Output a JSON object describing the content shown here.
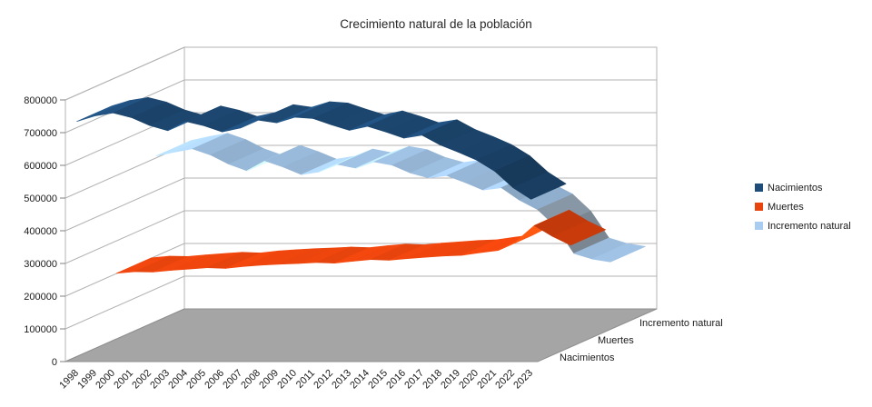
{
  "chart_data": {
    "type": "line",
    "variant": "3d-ribbon",
    "title": "Crecimiento natural de la población",
    "grid": "horizontal",
    "legend_position": "right",
    "wall_line_color": "#B3B3B3",
    "floor_color": "#A5A5A5",
    "ylim": [
      0,
      800000
    ],
    "ytick_step": 100000,
    "ytick_labels": [
      "0",
      "100000",
      "200000",
      "300000",
      "400000",
      "500000",
      "600000",
      "700000",
      "800000"
    ],
    "categories": [
      "1998",
      "1999",
      "2000",
      "2001",
      "2002",
      "2003",
      "2004",
      "2005",
      "2006",
      "2007",
      "2008",
      "2009",
      "2010",
      "2011",
      "2012",
      "2013",
      "2014",
      "2015",
      "2016",
      "2017",
      "2018",
      "2019",
      "2020",
      "2021",
      "2022",
      "2023"
    ],
    "series": [
      {
        "name": "Nacimientos",
        "color": "#1F4C78",
        "values": [
          731000,
          748000,
          757000,
          743000,
          719000,
          703000,
          731000,
          718000,
          699000,
          711000,
          735000,
          727000,
          744000,
          740000,
          721000,
          704000,
          716000,
          699000,
          680000,
          689000,
          659000,
          637000,
          613000,
          579000,
          529000,
          493000
        ]
      },
      {
        "name": "Muertes",
        "color": "#E8440D",
        "values": [
          213000,
          218000,
          217000,
          222000,
          226000,
          230000,
          228000,
          234000,
          238000,
          241000,
          243000,
          246000,
          244000,
          250000,
          255000,
          253000,
          258000,
          262000,
          266000,
          268000,
          276000,
          283000,
          311000,
          359000,
          326000,
          299000
        ]
      },
      {
        "name": "Incremento natural",
        "color": "#A9CDF1",
        "values": [
          518000,
          530000,
          540000,
          521000,
          493000,
          473000,
          503000,
          484000,
          461000,
          470000,
          492000,
          481000,
          500000,
          490000,
          466000,
          451000,
          458000,
          437000,
          414000,
          421000,
          383000,
          354000,
          302000,
          220000,
          203000,
          194000
        ]
      }
    ],
    "depth_axis_labels": [
      "Nacimientos",
      "Muertes",
      "Incremento natural"
    ]
  }
}
